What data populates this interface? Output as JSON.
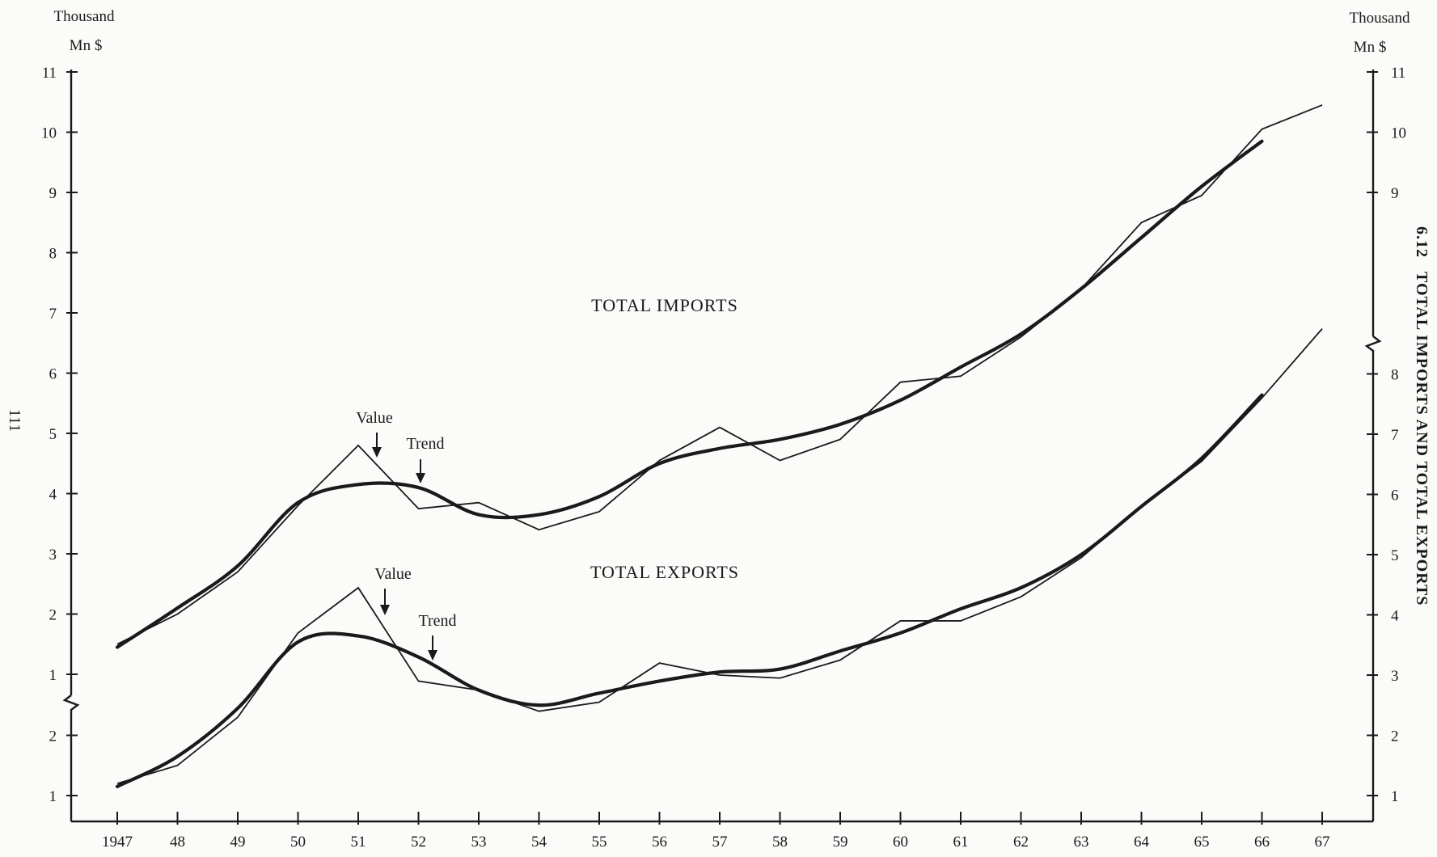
{
  "chart_data": {
    "type": "line",
    "title": "TOTAL IMPORTS AND TOTAL EXPORTS",
    "figure_number": "6.12",
    "page_number": "111",
    "x": [
      "1947",
      "48",
      "49",
      "50",
      "51",
      "52",
      "53",
      "54",
      "55",
      "56",
      "57",
      "58",
      "59",
      "60",
      "61",
      "62",
      "63",
      "64",
      "65",
      "66",
      "67"
    ],
    "x_years": [
      1947,
      1948,
      1949,
      1950,
      1951,
      1952,
      1953,
      1954,
      1955,
      1956,
      1957,
      1958,
      1959,
      1960,
      1961,
      1962,
      1963,
      1964,
      1965,
      1966,
      1967
    ],
    "left_axis": {
      "unit_line1": "Thousand",
      "unit_line2": "Mn $",
      "upper_ticks": [
        "1",
        "2",
        "3",
        "4",
        "5",
        "6",
        "7",
        "8",
        "9",
        "10",
        "11"
      ],
      "lower_ticks": [
        "1",
        "2"
      ],
      "upper_range": [
        0.5,
        11
      ],
      "lower_range": [
        0.5,
        2.5
      ],
      "broken": true
    },
    "right_axis": {
      "unit_line1": "Thousand",
      "unit_line2": "Mn $",
      "upper_ticks": [
        "9",
        "10",
        "11"
      ],
      "lower_ticks": [
        "1",
        "2",
        "3",
        "4",
        "5",
        "6",
        "7",
        "8"
      ],
      "broken": true
    },
    "series": [
      {
        "name": "TOTAL IMPORTS",
        "kind": "value",
        "x": [
          1947,
          1948,
          1949,
          1950,
          1951,
          1952,
          1953,
          1954,
          1955,
          1956,
          1957,
          1958,
          1959,
          1960,
          1961,
          1962,
          1963,
          1964,
          1965,
          1966,
          1967
        ],
        "y": [
          1.5,
          2.0,
          2.7,
          3.8,
          4.8,
          3.75,
          3.85,
          3.4,
          3.7,
          4.55,
          5.1,
          4.55,
          4.9,
          5.85,
          5.95,
          6.6,
          7.4,
          8.5,
          8.95,
          10.05,
          10.45
        ]
      },
      {
        "name": "TOTAL IMPORTS",
        "kind": "trend",
        "x": [
          1947,
          1948,
          1949,
          1950,
          1951,
          1952,
          1953,
          1954,
          1955,
          1956,
          1957,
          1958,
          1959,
          1960,
          1961,
          1962,
          1963,
          1964,
          1965,
          1966
        ],
        "y": [
          1.45,
          2.1,
          2.8,
          3.85,
          4.15,
          4.1,
          3.65,
          3.65,
          3.95,
          4.5,
          4.75,
          4.9,
          5.15,
          5.55,
          6.1,
          6.65,
          7.4,
          8.25,
          9.1,
          9.85
        ]
      },
      {
        "name": "TOTAL EXPORTS",
        "kind": "value",
        "x": [
          1947,
          1948,
          1949,
          1950,
          1951,
          1952,
          1953,
          1954,
          1955,
          1956,
          1957,
          1958,
          1959,
          1960,
          1961,
          1962,
          1963,
          1964,
          1965,
          1966,
          1967
        ],
        "y": [
          1.2,
          1.5,
          2.3,
          3.7,
          4.45,
          2.9,
          2.75,
          2.4,
          2.55,
          3.2,
          3.0,
          2.95,
          3.25,
          3.9,
          3.9,
          4.3,
          4.95,
          5.8,
          6.55,
          7.6,
          8.75
        ]
      },
      {
        "name": "TOTAL EXPORTS",
        "kind": "trend",
        "x": [
          1947,
          1948,
          1949,
          1950,
          1951,
          1952,
          1953,
          1954,
          1955,
          1956,
          1957,
          1958,
          1959,
          1960,
          1961,
          1962,
          1963,
          1964,
          1965,
          1966
        ],
        "y": [
          1.15,
          1.65,
          2.45,
          3.55,
          3.65,
          3.3,
          2.75,
          2.5,
          2.7,
          2.9,
          3.05,
          3.1,
          3.4,
          3.7,
          4.1,
          4.45,
          5.0,
          5.8,
          6.6,
          7.65
        ]
      }
    ],
    "annotations": {
      "imports_value": "Value",
      "imports_trend": "Trend",
      "exports_value": "Value",
      "exports_trend": "Trend"
    },
    "grid": false
  }
}
